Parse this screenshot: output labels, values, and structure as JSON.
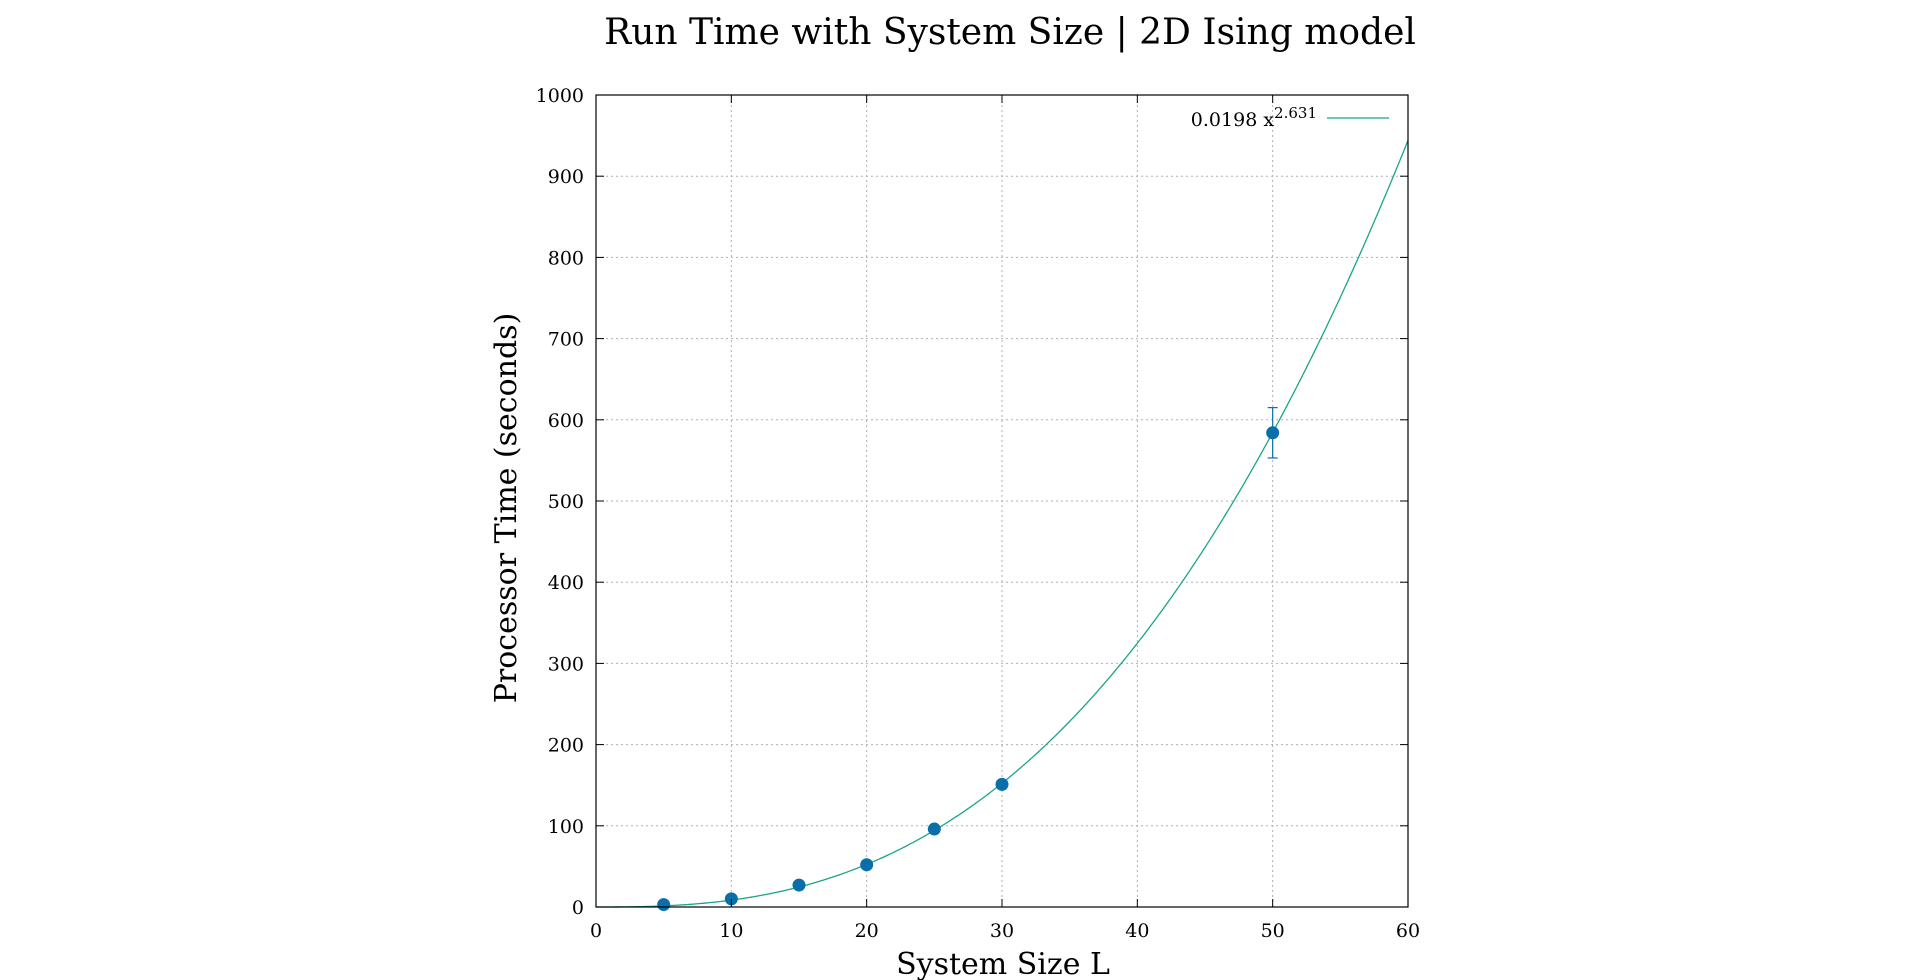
{
  "chart_data": {
    "type": "scatter",
    "title": "Run Time with System Size | 2D Ising model",
    "xlabel": "System Size L",
    "ylabel": "Processor Time (seconds)",
    "xlim": [
      0,
      60
    ],
    "ylim": [
      0,
      1000
    ],
    "x_ticks": [
      0,
      10,
      20,
      30,
      40,
      50,
      60
    ],
    "y_ticks": [
      0,
      100,
      200,
      300,
      400,
      500,
      600,
      700,
      800,
      900,
      1000
    ],
    "grid": true,
    "legend_placement": "top-right",
    "points": [
      {
        "x": 5,
        "y": 3,
        "err": 0
      },
      {
        "x": 10,
        "y": 10,
        "err": 0
      },
      {
        "x": 15,
        "y": 27,
        "err": 0
      },
      {
        "x": 20,
        "y": 52,
        "err": 0
      },
      {
        "x": 25,
        "y": 96,
        "err": 0
      },
      {
        "x": 30,
        "y": 151,
        "err": 0
      },
      {
        "x": 50,
        "y": 584,
        "err": 31
      }
    ],
    "fit": {
      "coefficient": 0.0198,
      "exponent": 2.631,
      "legend_base": "0.0198 x",
      "legend_exponent": "2.631"
    },
    "colors": {
      "points": "#0a6fa8",
      "fit_line": "#1aa58a",
      "axes": "#000000"
    }
  }
}
